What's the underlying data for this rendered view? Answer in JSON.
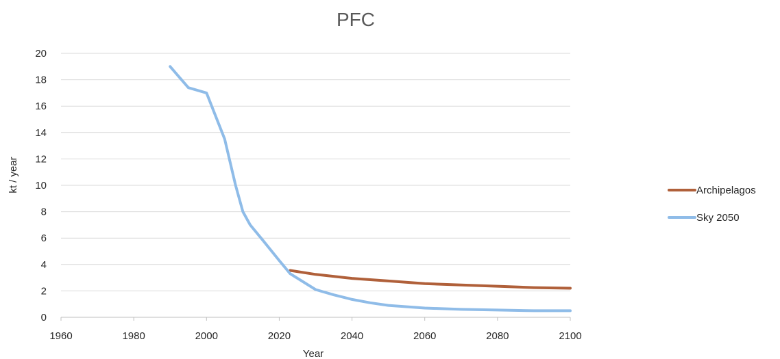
{
  "chart_data": {
    "type": "line",
    "title": "PFC",
    "xlabel": "Year",
    "ylabel": "kt / year",
    "xlim": [
      1960,
      2100
    ],
    "ylim": [
      0,
      20
    ],
    "x_ticks": [
      1960,
      1980,
      2000,
      2020,
      2040,
      2060,
      2080,
      2100
    ],
    "y_ticks": [
      0,
      2,
      4,
      6,
      8,
      10,
      12,
      14,
      16,
      18,
      20
    ],
    "grid": "horizontal",
    "legend_position": "right",
    "series": [
      {
        "name": "Archipelagos",
        "color": "#b0603a",
        "points": [
          [
            2023,
            3.55
          ],
          [
            2030,
            3.25
          ],
          [
            2040,
            2.95
          ],
          [
            2050,
            2.75
          ],
          [
            2060,
            2.55
          ],
          [
            2070,
            2.45
          ],
          [
            2080,
            2.35
          ],
          [
            2090,
            2.25
          ],
          [
            2100,
            2.2
          ]
        ]
      },
      {
        "name": "Sky 2050",
        "color": "#8fbce8",
        "points": [
          [
            1990,
            19.0
          ],
          [
            1995,
            17.4
          ],
          [
            2000,
            17.0
          ],
          [
            2005,
            13.5
          ],
          [
            2008,
            10.0
          ],
          [
            2010,
            8.0
          ],
          [
            2012,
            7.0
          ],
          [
            2015,
            6.0
          ],
          [
            2020,
            4.3
          ],
          [
            2023,
            3.3
          ],
          [
            2030,
            2.1
          ],
          [
            2035,
            1.7
          ],
          [
            2040,
            1.35
          ],
          [
            2045,
            1.1
          ],
          [
            2050,
            0.9
          ],
          [
            2060,
            0.7
          ],
          [
            2070,
            0.6
          ],
          [
            2080,
            0.55
          ],
          [
            2090,
            0.5
          ],
          [
            2100,
            0.5
          ]
        ]
      }
    ]
  }
}
